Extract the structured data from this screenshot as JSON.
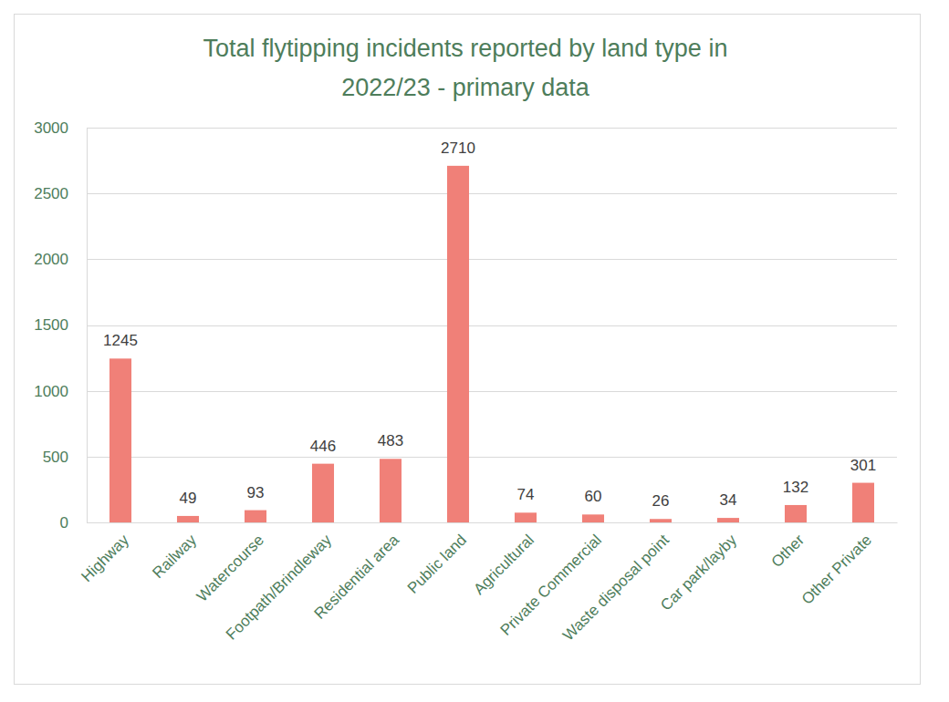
{
  "chart_data": {
    "type": "bar",
    "title": [
      "Total flytipping incidents reported by land type in",
      "2022/23 - primary data"
    ],
    "categories": [
      "Highway",
      "Railway",
      "Watercourse",
      "Footpath/Brindleway",
      "Residential area",
      "Public land",
      "Agricultural",
      "Private Commercial",
      "Waste disposal point",
      "Car park/layby",
      "Other",
      "Other Private"
    ],
    "values": [
      1245,
      49,
      93,
      446,
      483,
      2710,
      74,
      60,
      26,
      34,
      132,
      301
    ],
    "color": "#f08078",
    "ylim": [
      0,
      3000
    ],
    "yticks": [
      0,
      500,
      1000,
      1500,
      2000,
      2500,
      3000
    ],
    "grid": true,
    "data_labels": true
  }
}
